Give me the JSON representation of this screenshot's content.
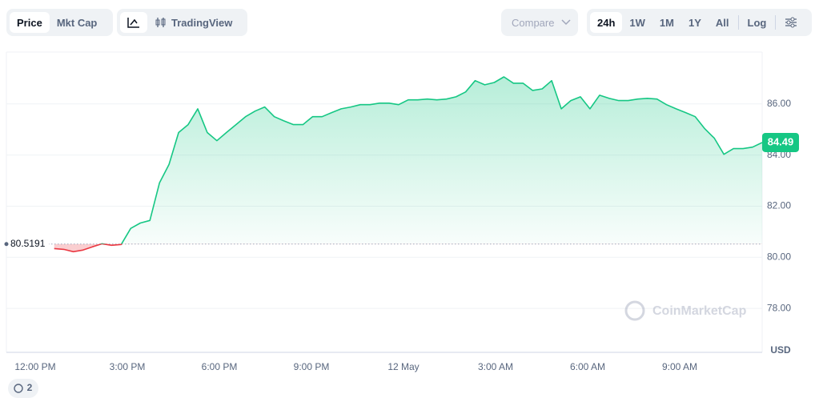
{
  "toolbar": {
    "value_tabs": [
      "Price",
      "Mkt Cap"
    ],
    "chart_tabs": [
      "TradingView"
    ],
    "compare": "Compare",
    "ranges": [
      "24h",
      "1W",
      "1M",
      "1Y",
      "All"
    ],
    "log": "Log"
  },
  "chart_data": {
    "type": "line",
    "x_labels": [
      "12:00 PM",
      "3:00 PM",
      "6:00 PM",
      "9:00 PM",
      "12 May",
      "3:00 AM",
      "6:00 AM",
      "9:00 AM"
    ],
    "values": [
      null,
      null,
      null,
      null,
      null,
      80.34,
      80.31,
      80.22,
      80.28,
      80.41,
      80.53,
      80.47,
      80.5,
      81.13,
      81.34,
      81.44,
      82.91,
      83.63,
      84.88,
      85.19,
      85.81,
      84.88,
      84.56,
      84.88,
      85.19,
      85.5,
      85.72,
      85.88,
      85.5,
      85.34,
      85.19,
      85.19,
      85.5,
      85.5,
      85.66,
      85.81,
      85.88,
      85.97,
      85.97,
      86.03,
      86.03,
      85.97,
      86.16,
      86.16,
      86.19,
      86.16,
      86.19,
      86.28,
      86.47,
      86.91,
      86.75,
      86.84,
      87.06,
      86.81,
      86.81,
      86.53,
      86.59,
      86.91,
      85.81,
      86.13,
      86.28,
      85.81,
      86.34,
      86.22,
      86.13,
      86.13,
      86.19,
      86.22,
      86.19,
      85.97,
      85.81,
      85.66,
      85.5,
      85.03,
      84.66,
      84.03,
      84.25,
      84.25,
      84.31,
      84.49
    ],
    "color": "#16c784",
    "below_color": "#ea3943",
    "reference": 80.5191,
    "current_price": 84.49,
    "ylim": [
      76.28,
      88.03
    ],
    "yticks": [
      {
        "value": 78,
        "label": "78.00"
      },
      {
        "value": 80,
        "label": "80.00"
      },
      {
        "value": 82,
        "label": "82.00"
      },
      {
        "value": 84,
        "label": "84.00"
      },
      {
        "value": 86,
        "label": "86.00"
      }
    ],
    "y_unit": "USD",
    "grid": true,
    "watermark": "CoinMarketCap"
  },
  "badge": "2"
}
